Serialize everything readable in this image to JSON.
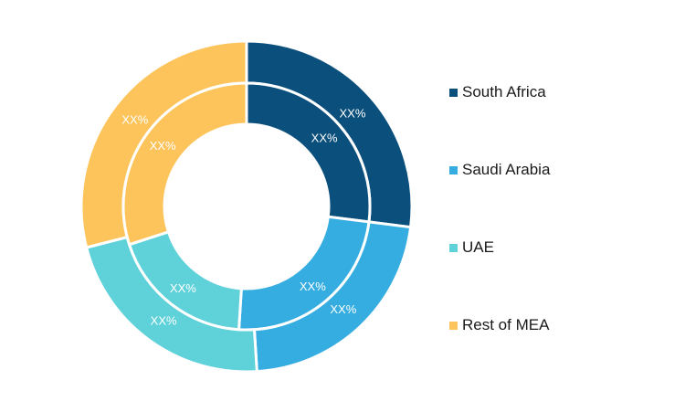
{
  "chart_data": {
    "type": "pie",
    "title": "",
    "categories": [
      "South Africa",
      "Saudi Arabia",
      "UAE",
      "Rest of MEA"
    ],
    "series": [
      {
        "ring": "outer",
        "values": [
          27,
          22,
          22,
          29
        ],
        "labels": [
          "XX%",
          "XX%",
          "XX%",
          "XX%"
        ]
      },
      {
        "ring": "inner",
        "values": [
          27,
          24,
          19,
          30
        ],
        "labels": [
          "XX%",
          "XX%",
          "XX%",
          "XX%"
        ]
      }
    ],
    "colors": [
      "#0b4f7c",
      "#35ade0",
      "#5fd1d9",
      "#fdc45c"
    ],
    "legend_position": "right"
  },
  "legend": {
    "items": [
      {
        "label": "South Africa",
        "color": "#0b4f7c"
      },
      {
        "label": "Saudi Arabia",
        "color": "#35ade0"
      },
      {
        "label": "UAE",
        "color": "#5fd1d9"
      },
      {
        "label": "Rest of MEA",
        "color": "#fdc45c"
      }
    ]
  }
}
